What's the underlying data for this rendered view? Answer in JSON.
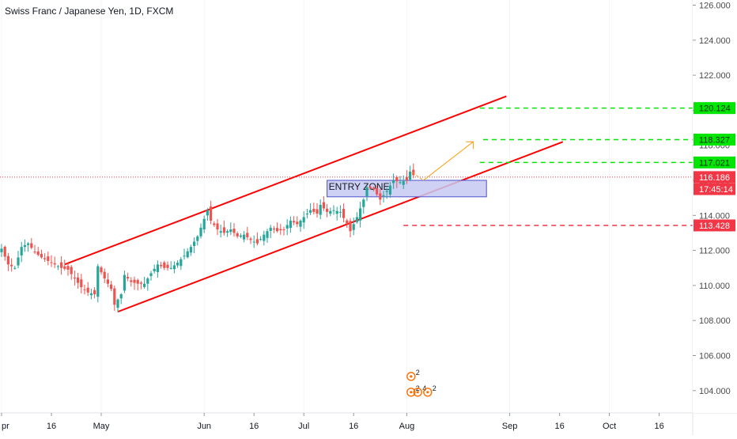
{
  "header": {
    "title": "Swiss Franc / Japanese Yen, 1D, FXCM"
  },
  "chart_data": {
    "type": "candlestick",
    "title": "Swiss Franc / Japanese Yen, 1D, FXCM",
    "y_axis": {
      "ylim": [
        103,
        126.3
      ],
      "ticks": [
        "126.000",
        "124.000",
        "122.000",
        "120.000",
        "118.000",
        "116.000",
        "114.000",
        "112.000",
        "110.000",
        "108.000",
        "106.000",
        "104.000"
      ],
      "tick_values": [
        126,
        124,
        122,
        120,
        118,
        116,
        114,
        112,
        110,
        108,
        106,
        104
      ]
    },
    "x_axis": {
      "tick_labels": [
        "pr",
        "16",
        "May",
        "Jun",
        "16",
        "Jul",
        "16",
        "Aug",
        "Sep",
        "16",
        "Oct",
        "16"
      ],
      "tick_days": [
        0,
        15,
        30,
        61,
        76,
        91,
        106,
        122,
        153,
        168,
        183,
        198
      ]
    },
    "bull_color": "#26a69a",
    "bear_color": "#ef5350",
    "price_path": [
      [
        0,
        112.1
      ],
      [
        2,
        111.2
      ],
      [
        4,
        111.0
      ],
      [
        6,
        112.2
      ],
      [
        8,
        112.4
      ],
      [
        10,
        111.9
      ],
      [
        12,
        111.6
      ],
      [
        14,
        111.4
      ],
      [
        16,
        111.2
      ],
      [
        18,
        111.0
      ],
      [
        20,
        110.9
      ],
      [
        22,
        110.4
      ],
      [
        24,
        109.9
      ],
      [
        26,
        109.6
      ],
      [
        28,
        109.5
      ],
      [
        29,
        111.1
      ],
      [
        31,
        110.4
      ],
      [
        33,
        109.8
      ],
      [
        34,
        108.9
      ],
      [
        36,
        109.5
      ],
      [
        37,
        110.6
      ],
      [
        39,
        110.2
      ],
      [
        41,
        110.1
      ],
      [
        43,
        110.1
      ],
      [
        45,
        110.7
      ],
      [
        47,
        111.2
      ],
      [
        49,
        111.0
      ],
      [
        51,
        111.0
      ],
      [
        53,
        111.3
      ],
      [
        55,
        111.7
      ],
      [
        57,
        112.2
      ],
      [
        59,
        112.8
      ],
      [
        60,
        113.3
      ],
      [
        62,
        114.3
      ],
      [
        63,
        113.7
      ],
      [
        65,
        113.2
      ],
      [
        67,
        113.0
      ],
      [
        69,
        113.2
      ],
      [
        71,
        112.8
      ],
      [
        73,
        112.9
      ],
      [
        75,
        112.6
      ],
      [
        77,
        112.4
      ],
      [
        79,
        112.9
      ],
      [
        81,
        113.3
      ],
      [
        83,
        113.1
      ],
      [
        85,
        113.2
      ],
      [
        87,
        113.7
      ],
      [
        89,
        113.5
      ],
      [
        91,
        113.9
      ],
      [
        93,
        114.3
      ],
      [
        95,
        114.1
      ],
      [
        96,
        114.6
      ],
      [
        98,
        114.2
      ],
      [
        100,
        114.3
      ],
      [
        102,
        114.2
      ],
      [
        104,
        113.5
      ],
      [
        105,
        113.1
      ],
      [
        107,
        113.9
      ],
      [
        109,
        114.9
      ],
      [
        110,
        115.6
      ],
      [
        112,
        115.5
      ],
      [
        114,
        114.9
      ],
      [
        116,
        115.4
      ],
      [
        118,
        116.0
      ],
      [
        120,
        115.9
      ],
      [
        122,
        116.0
      ],
      [
        123,
        116.5
      ],
      [
        124,
        116.3
      ]
    ],
    "price_tags": [
      {
        "label": "120.124",
        "value": 120.124,
        "color": "#00e600"
      },
      {
        "label": "118.327",
        "value": 118.327,
        "color": "#00e600"
      },
      {
        "label": "117.021",
        "value": 117.021,
        "color": "#00e600"
      },
      {
        "label": "116.186",
        "value": 116.186,
        "color": "#f23645"
      },
      {
        "label": "17:45:14",
        "value": 115.5,
        "color": "#f23645"
      },
      {
        "label": "113.428",
        "value": 113.428,
        "color": "#f23645"
      }
    ],
    "targets": [
      {
        "name": "tp3",
        "price": 120.124,
        "start_day": 144,
        "color": "#00e600"
      },
      {
        "name": "tp2",
        "price": 118.327,
        "start_day": 145,
        "color": "#00e600"
      },
      {
        "name": "tp1",
        "price": 117.021,
        "start_day": 144,
        "color": "#00e600"
      },
      {
        "name": "stop",
        "price": 113.428,
        "start_day": 121,
        "color": "#f23645"
      }
    ],
    "last_price": 116.186,
    "channel": {
      "upper": [
        [
          19,
          111.2
        ],
        [
          152,
          120.8
        ]
      ],
      "lower": [
        [
          35,
          108.5
        ],
        [
          169,
          118.2
        ]
      ],
      "color": "#ff0000"
    },
    "entry_zone": {
      "label": "ENTRY ZONE",
      "day_start": 98,
      "day_end": 146,
      "price_low": 115.06,
      "price_high": 116.0
    },
    "arrow": {
      "from": [
        127,
        116.0
      ],
      "to": [
        142,
        118.2
      ]
    },
    "events": [
      {
        "label": "2",
        "day": 124,
        "price": 104.9
      },
      {
        "label": "2",
        "day": 124,
        "price": 104.0
      },
      {
        "label": "4",
        "day": 126,
        "price": 104.0
      },
      {
        "label": "2",
        "day": 129,
        "price": 104.0
      }
    ]
  }
}
